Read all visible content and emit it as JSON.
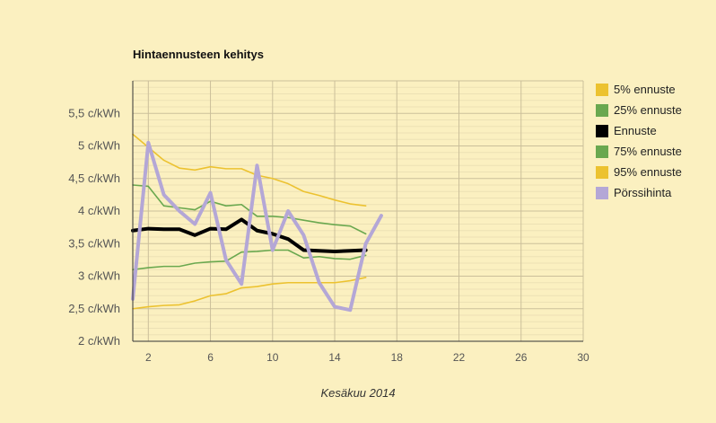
{
  "chart_data": {
    "type": "line",
    "title": "Hintaennusteen kehitys",
    "xlabel": "Kesäkuu 2014",
    "ylabel": "",
    "xlim": [
      1,
      30
    ],
    "ylim": [
      2,
      6
    ],
    "x_ticks": [
      2,
      6,
      10,
      14,
      18,
      22,
      26,
      30
    ],
    "y_ticks": [
      {
        "value": 2,
        "label": "2 c/kWh"
      },
      {
        "value": 2.5,
        "label": "2,5 c/kWh"
      },
      {
        "value": 3,
        "label": "3 c/kWh"
      },
      {
        "value": 3.5,
        "label": "3,5 c/kWh"
      },
      {
        "value": 4,
        "label": "4 c/kWh"
      },
      {
        "value": 4.5,
        "label": "4,5 c/kWh"
      },
      {
        "value": 5,
        "label": "5 c/kWh"
      },
      {
        "value": 5.5,
        "label": "5,5 c/kWh"
      }
    ],
    "grid": true,
    "legend_position": "right",
    "series": [
      {
        "name": "5% ennuste",
        "color": "#ecc230",
        "width": 1.6,
        "x": [
          1,
          2,
          3,
          4,
          5,
          6,
          7,
          8,
          9,
          10,
          11,
          12,
          13,
          14,
          15,
          16
        ],
        "y": [
          2.5,
          2.53,
          2.55,
          2.56,
          2.62,
          2.7,
          2.73,
          2.82,
          2.84,
          2.88,
          2.9,
          2.9,
          2.9,
          2.9,
          2.93,
          2.98
        ]
      },
      {
        "name": "25% ennuste",
        "color": "#6aa84f",
        "width": 1.6,
        "x": [
          1,
          2,
          3,
          4,
          5,
          6,
          7,
          8,
          9,
          10,
          11,
          12,
          13,
          14,
          15,
          16
        ],
        "y": [
          3.1,
          3.13,
          3.15,
          3.15,
          3.2,
          3.22,
          3.23,
          3.37,
          3.38,
          3.4,
          3.4,
          3.28,
          3.3,
          3.27,
          3.26,
          3.32
        ]
      },
      {
        "name": "Ennuste",
        "color": "#000000",
        "width": 4,
        "x": [
          1,
          2,
          3,
          4,
          5,
          6,
          7,
          8,
          9,
          10,
          11,
          12,
          13,
          14,
          15,
          16
        ],
        "y": [
          3.7,
          3.73,
          3.72,
          3.72,
          3.63,
          3.73,
          3.72,
          3.87,
          3.7,
          3.65,
          3.57,
          3.4,
          3.39,
          3.38,
          3.39,
          3.4
        ]
      },
      {
        "name": "75% ennuste",
        "color": "#6aa84f",
        "width": 1.6,
        "x": [
          1,
          2,
          3,
          4,
          5,
          6,
          7,
          8,
          9,
          10,
          11,
          12,
          13,
          14,
          15,
          16
        ],
        "y": [
          4.4,
          4.38,
          4.08,
          4.05,
          4.02,
          4.15,
          4.08,
          4.1,
          3.92,
          3.92,
          3.9,
          3.86,
          3.82,
          3.79,
          3.77,
          3.65
        ]
      },
      {
        "name": "95% ennuste",
        "color": "#ecc230",
        "width": 1.6,
        "x": [
          1,
          2,
          3,
          4,
          5,
          6,
          7,
          8,
          9,
          10,
          11,
          12,
          13,
          14,
          15,
          16
        ],
        "y": [
          5.18,
          4.98,
          4.78,
          4.66,
          4.63,
          4.68,
          4.65,
          4.65,
          4.55,
          4.5,
          4.42,
          4.3,
          4.24,
          4.17,
          4.11,
          4.08
        ]
      },
      {
        "name": "Pörssihinta",
        "color": "#b4a7d6",
        "width": 4,
        "x": [
          1,
          2,
          3,
          4,
          5,
          6,
          7,
          8,
          9,
          10,
          11,
          12,
          13,
          14,
          15,
          16,
          17
        ],
        "y": [
          2.65,
          5.05,
          4.25,
          4.0,
          3.8,
          4.28,
          3.25,
          2.88,
          4.7,
          3.4,
          4.0,
          3.63,
          2.9,
          2.53,
          2.48,
          3.5,
          3.93
        ]
      }
    ]
  }
}
